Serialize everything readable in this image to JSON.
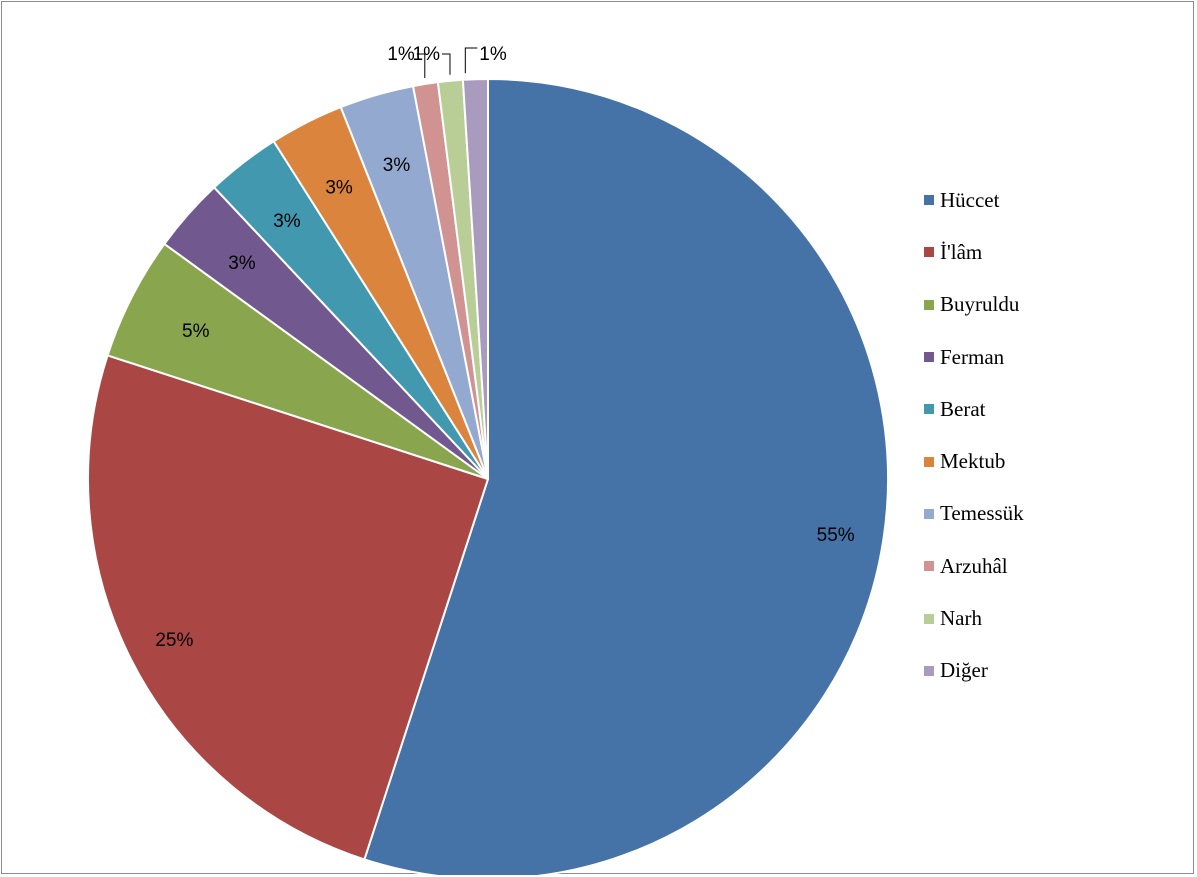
{
  "chart_data": {
    "type": "pie",
    "title": "",
    "categories": [
      "Hüccet",
      "İ'lâm",
      "Buyruldu",
      "Ferman",
      "Berat",
      "Mektub",
      "Temessük",
      "Arzuhâl",
      "Narh",
      "Diğer"
    ],
    "values": [
      55,
      25,
      5,
      3,
      3,
      3,
      3,
      1,
      1,
      1
    ],
    "data_labels": [
      "55%",
      "25%",
      "5%",
      "3%",
      "3%",
      "3%",
      "3%",
      "1%",
      "1%",
      "1%"
    ],
    "colors": [
      "#4572a7",
      "#aa4643",
      "#89a54e",
      "#71588f",
      "#4198af",
      "#db843d",
      "#93a9cf",
      "#d19392",
      "#b9cd96",
      "#a99bbd"
    ],
    "legend_position": "right",
    "start_angle": "top, clockwise"
  }
}
